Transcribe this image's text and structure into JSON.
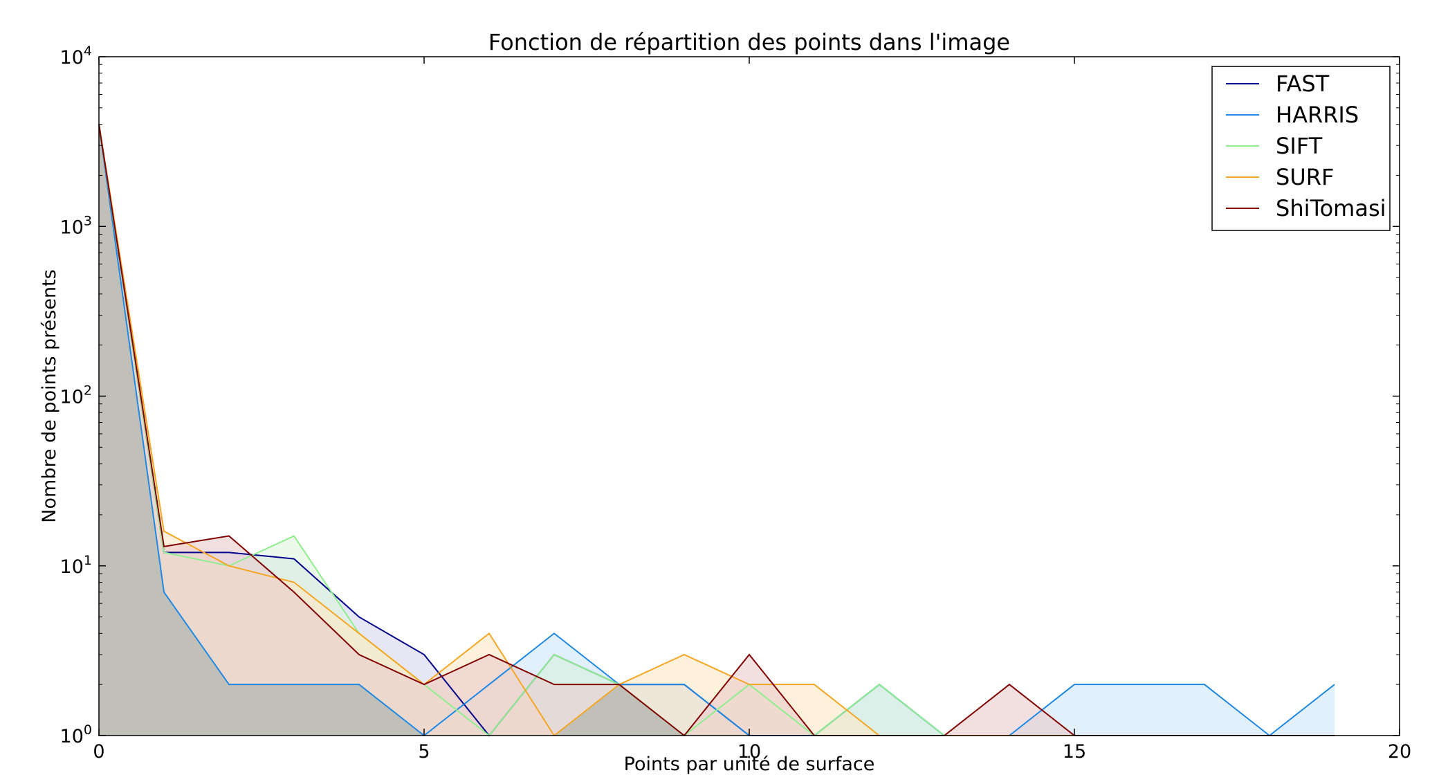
{
  "chart_data": {
    "type": "area",
    "title": "Fonction de répartition des points dans l'image",
    "xlabel": "Points par unité de surface",
    "ylabel": "Nombre de points présents",
    "xlim": [
      0,
      20
    ],
    "ylim": [
      1,
      10000
    ],
    "yscale": "log",
    "x_ticks": [
      0,
      5,
      10,
      15,
      20
    ],
    "y_ticks": [
      {
        "base": "10",
        "exp": "0",
        "value": 1
      },
      {
        "base": "10",
        "exp": "1",
        "value": 10
      },
      {
        "base": "10",
        "exp": "2",
        "value": 100
      },
      {
        "base": "10",
        "exp": "3",
        "value": 1000
      },
      {
        "base": "10",
        "exp": "4",
        "value": 10000
      }
    ],
    "grid": false,
    "legend_position": "top-right",
    "x": [
      0,
      1,
      2,
      3,
      4,
      5,
      6,
      7,
      8,
      9,
      10,
      11,
      12,
      13,
      14,
      15,
      16,
      17,
      18,
      19
    ],
    "series": [
      {
        "name": "FAST",
        "color": "#00008b",
        "fill": "#d6d6ec",
        "values": [
          4000,
          12,
          12,
          11,
          5,
          3,
          1,
          3,
          2,
          2,
          1,
          1,
          2,
          1,
          1,
          1,
          1,
          1,
          1,
          1
        ]
      },
      {
        "name": "HARRIS",
        "color": "#1e88e5",
        "fill": "#cfe6f8",
        "values": [
          4000,
          7,
          2,
          2,
          2,
          1,
          2,
          4,
          2,
          2,
          1,
          1,
          2,
          1,
          1,
          2,
          2,
          2,
          1,
          2
        ]
      },
      {
        "name": "SIFT",
        "color": "#90ee90",
        "fill": "#def6de",
        "values": [
          4000,
          12,
          10,
          15,
          4,
          2,
          1,
          3,
          2,
          1,
          2,
          1,
          2,
          1,
          1,
          1,
          1,
          1,
          1,
          1
        ]
      },
      {
        "name": "SURF",
        "color": "#f5a623",
        "fill": "#fde7c4",
        "values": [
          4000,
          16,
          10,
          8,
          4,
          2,
          4,
          1,
          2,
          3,
          2,
          2,
          1,
          1,
          1,
          1,
          1,
          1,
          1,
          1
        ]
      },
      {
        "name": "ShiTomasi",
        "color": "#800000",
        "fill": "#e9cccc",
        "values": [
          4000,
          13,
          15,
          7,
          3,
          2,
          3,
          2,
          2,
          1,
          3,
          1,
          1,
          1,
          2,
          1,
          1,
          1,
          1,
          1
        ]
      }
    ],
    "overlap_fill": "#c0bfb8"
  }
}
